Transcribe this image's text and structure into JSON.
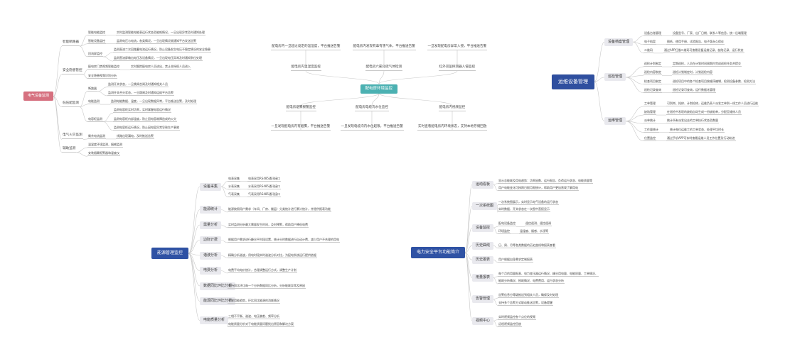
{
  "colors": {
    "electrical_root": "#d6707f",
    "environment_root": "#4bb1b2",
    "ops_root": "#2f4f9f",
    "energy_root": "#2f52a4",
    "platform_root": "#2f52a4",
    "line": "#c9c9c9",
    "branch_box": "#e9e9ee"
  },
  "maps": {
    "electrical": {
      "root": "电气设备监测",
      "children": [
        {
          "label": "智能断路器",
          "children": [
            {
              "label": "智能电能监控",
              "children": [
                {
                  "label": "实时监测智能电能表运行状态及能耗情况，一旦出现异常及时通知处理"
                }
              ]
            },
            {
              "label": "智能设备监控",
              "children": [
                {
                  "label": "监测电压与电流，各类情况，一旦出现情况就通知平台发送告警"
                }
              ]
            },
            {
              "label": "回流屏监控",
              "children": [
                {
                  "label": "监测直流二次回路蓄电池运行情况，防止设备发生电压不稳定情况的安全隐患"
                },
                {
                  "label": "监测直流屏输出电压及设备情况，一旦出现电压异常及时通知到位处理"
                }
              ]
            }
          ]
        },
        {
          "label": "安全隐患管控",
          "children": [
            {
              "label": "配电房门禁视频智能监控",
              "children": [
                {
                  "label": "实时跟踪配电房人员进出，禁止非授权人员进入"
                }
              ]
            },
            {
              "label": "安全隐患视频识别分析"
            }
          ]
        },
        {
          "label": "低压配监测",
          "children": [
            {
              "label": "断路器",
              "children": [
                {
                  "label": "监测开关状态，一旦跳闸合闸及时通知相关人员"
                },
                {
                  "label": "监测开关合分状态，一旦跳闸及时通知运维平台告警"
                }
              ]
            },
            {
              "label": "电能监测",
              "children": [
                {
                  "label": "监测电能数据、温度，一旦出现数据异常，平台推送告警，及时处理"
                }
              ]
            },
            {
              "label": "电容柜监测",
              "children": [
                {
                  "label": "监测电容柜实时功率，实时掌握电容运行情况"
                },
                {
                  "label": "监测电容柜内部温度，防止因电容故障造成的火灾"
                },
                {
                  "label": "监测电容柜运行情况，防止因电容异常导致生产事故"
                }
              ]
            }
          ]
        },
        {
          "label": "电气火灾监测",
          "children": [
            {
              "label": "剩余电流监测",
              "children": [
                {
                  "label": "线路出现漏电，及时推送告警"
                }
              ]
            }
          ]
        },
        {
          "label": "辅助监测",
          "children": [
            {
              "label": "温湿度环境监测，烟感监测"
            },
            {
              "label": "安装烟雾报警器和湿度仪"
            }
          ]
        }
      ]
    },
    "environment": {
      "root": "配电房环境监控",
      "up": [
        {
          "label": "配电房内温湿度监控",
          "detail": "配电房内一旦超过设定的温湿度，平台推送告警"
        },
        {
          "label": "配电房六氟化硫气体检测",
          "detail": "配电房内发现有毒有害气体，平台推送告警"
        },
        {
          "label": "红外双鉴探测器入侵监控",
          "detail": "一旦发现配电房异常入侵，平台推送告警"
        }
      ],
      "down": [
        {
          "label": "配电房烟雾报警监控",
          "detail": "一旦发现配电房内有烟雾，平台推送告警"
        },
        {
          "label": "配电房电缆沟水位监控",
          "detail": "一旦发现电缆沟内水位超限，平台推送告警"
        },
        {
          "label": "配电房内视频监控",
          "detail": "实时查看配电房内环境状态，支持本地存储回放"
        }
      ]
    },
    "ops": {
      "root": "运维设备管理",
      "children": [
        {
          "label": "设备档案管理",
          "children": [
            {
              "label": "设备台账管理",
              "children": [
                {
                  "label": "设备型号、厂家、出厂日期、联系人等信息，统一后端管理"
                }
              ]
            },
            {
              "label": "电子档案",
              "children": [
                {
                  "label": "图纸、使用手册、试验报告、电子版永久保存"
                }
              ]
            },
            {
              "label": "二维码",
              "children": [
                {
                  "label": "通过APP扫描二维码可查看设备运维记录、缺陷记录、运行状态"
                }
              ]
            }
          ]
        },
        {
          "label": "巡检管理",
          "children": [
            {
              "label": "巡检计划制定",
              "children": [
                {
                  "label": "定期巡检，人员在计划时间周期内完成巡检任务并提交"
                }
              ]
            },
            {
              "label": "巡检内容制定",
              "children": [
                {
                  "label": "巡检计划制定时，计划巡检内容"
                }
              ]
            },
            {
              "label": "检查项目制定",
              "children": [
                {
                  "label": "巡检项目中的各个检查项目按顺序编辑，检测设备参数、检测方法"
                }
              ]
            },
            {
              "label": "巡检记录查询",
              "children": [
                {
                  "label": "巡检记录可查询，运行数据化管理"
                }
              ]
            }
          ]
        },
        {
          "label": "运维管理",
          "children": [
            {
              "label": "工单管理",
              "children": [
                {
                  "label": "可到岗、抢修、计划检修，运维负责人派发工单到一线工作人员进行运维"
                }
              ]
            },
            {
              "label": "缺陷管理",
              "children": [
                {
                  "label": "在巡检中发现的缺陷自动生成一份缺陷单，分配至维修人员"
                }
              ]
            },
            {
              "label": "派单统计",
              "children": [
                {
                  "label": "统计所有派发出去的工单执行状态及数量"
                }
              ]
            },
            {
              "label": "工作量统计",
              "children": [
                {
                  "label": "统计每位运维工的工单状态、处理平均时长"
                }
              ]
            },
            {
              "label": "位置监控",
              "children": [
                {
                  "label": "通过手机APP可实时查看运维人员工作位置及行动轨迹"
                }
              ]
            }
          ]
        }
      ]
    },
    "energy": {
      "root": "能源管理监控",
      "children": [
        {
          "label": "设备采集",
          "children": [
            {
              "label": "电表采集",
              "children": [
                {
                  "label": "电表采用RS485通讯接口"
                }
              ]
            },
            {
              "label": "水表采集",
              "children": [
                {
                  "label": "水表采用RS485通讯接口"
                }
              ]
            },
            {
              "label": "气表采集",
              "children": [
                {
                  "label": "气表采用RS485通讯接口"
                }
              ]
            }
          ]
        },
        {
          "label": "能源统计",
          "children": [
            {
              "label": "能源按照用户需求（车间、厂房、楼层）分类统计进行累计统计，并提供报表功能"
            }
          ]
        },
        {
          "label": "需量分析",
          "children": [
            {
              "label": "实时监测分析最大需量发生时间，及时预警，帮助用户降低电费"
            }
          ]
        },
        {
          "label": "边际计费",
          "children": [
            {
              "label": "根据用户需求进行峰谷平时段设置，统计分时数据进行自动计费，减少用户不合理的用电"
            }
          ]
        },
        {
          "label": "谐波分析",
          "children": [
            {
              "label": "精确分析谐波，用电时段实时谐波分析对比，为配电系统运行提供依据"
            }
          ]
        },
        {
          "label": "电费分析",
          "children": [
            {
              "label": "电费平均电价统计，合理调整运行方式，调整生产计划"
            }
          ]
        },
        {
          "label": "数据同比环比分析",
          "children": [
            {
              "label": "支持同比环比每一个分析数据同比分析，分析能耗异常及原因"
            }
          ]
        },
        {
          "label": "能源同比环比分析",
          "children": [
            {
              "label": "了解用能趋势，环比同比能源的消耗情况"
            }
          ]
        },
        {
          "label": "电能质量分析",
          "children": [
            {
              "label": "三相不平衡、谐波、电压偏差、频率分析"
            },
            {
              "label": "电能质量分析对于电能质量问题找出原因和解决方案"
            }
          ]
        }
      ]
    },
    "platform": {
      "root": "电力安全平台功能简介",
      "children": [
        {
          "label": "运动看板",
          "children": [
            {
              "label": "显示总能耗及用电趋势：功率因数、运行报告、负荷运行状态、电能质量等"
            },
            {
              "label": "用户电能变化可按照日报月报统计，帮助用户更加直观了解用电"
            }
          ]
        },
        {
          "label": "一次系统图",
          "children": [
            {
              "label": "一次系统图展示，实时显示电气设备的运行状态"
            },
            {
              "label": "实时数据、开关状态在一次图中直接显示"
            }
          ]
        },
        {
          "label": "设备监控",
          "children": [
            {
              "label": "配电设备监控",
              "children": [
                {
                  "label": "遥信遥测、遥控遥调"
                }
              ]
            },
            {
              "label": "环境监控",
              "children": [
                {
                  "label": "温湿度、烟感、水浸等"
                }
              ]
            }
          ]
        },
        {
          "label": "历史曲线",
          "children": [
            {
              "label": "日、周、月等各类数据的历史曲线和报表查看"
            }
          ]
        },
        {
          "label": "历史报表",
          "children": [
            {
              "label": "用户根据自身需求定制报表"
            }
          ]
        },
        {
          "label": "用量报表",
          "children": [
            {
              "label": "每个月的用量报表、电力变压器运行情况、峰谷用电量、电能质量、工单情况、"
            },
            {
              "label": "能耗分析情况、损耗情况、电费费用、运行状态分析"
            }
          ]
        },
        {
          "label": "告警管理",
          "children": [
            {
              "label": "告警信息分等级推送到相关人员，确保及时处理"
            },
            {
              "label": "支持多个告警方式联动推送告警，设备提醒"
            }
          ]
        },
        {
          "label": "视频中心",
          "children": [
            {
              "label": "实时视频监控各个点位的视频"
            },
            {
              "label": "远程视频监控回放"
            }
          ]
        }
      ]
    }
  }
}
